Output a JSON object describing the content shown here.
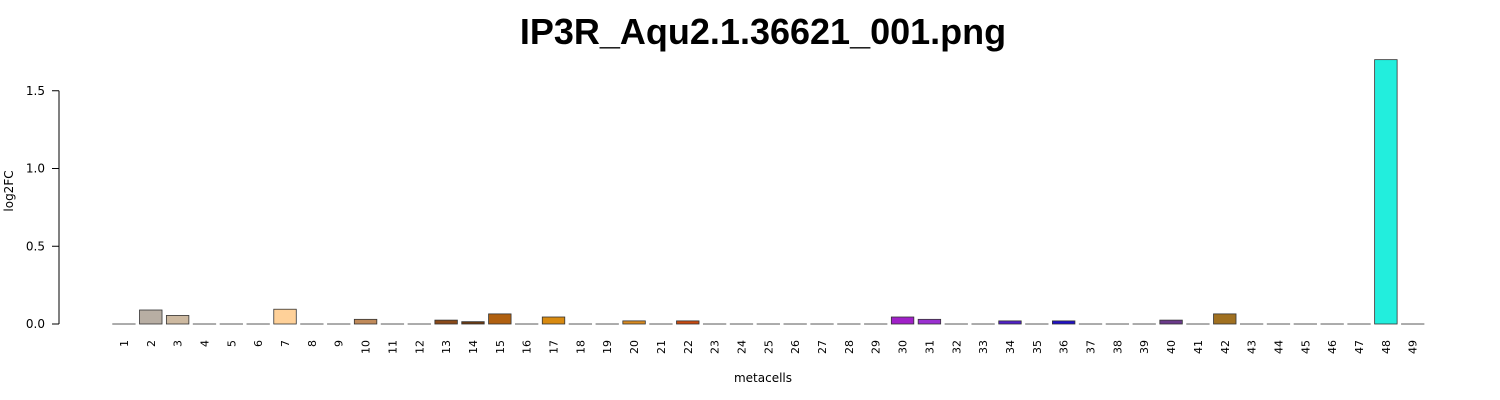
{
  "chart_data": {
    "type": "bar",
    "title": "IP3R_Aqu2.1.36621_001.png",
    "xlabel": "metacells",
    "ylabel": "log2FC",
    "ylim": [
      0,
      1.7
    ],
    "yticks": [
      "0.0",
      "0.5",
      "1.0",
      "1.5"
    ],
    "grid": false,
    "categories": [
      "1",
      "2",
      "3",
      "4",
      "5",
      "6",
      "7",
      "8",
      "9",
      "10",
      "11",
      "12",
      "13",
      "14",
      "15",
      "16",
      "17",
      "18",
      "19",
      "20",
      "21",
      "22",
      "23",
      "24",
      "25",
      "26",
      "27",
      "28",
      "29",
      "30",
      "31",
      "32",
      "33",
      "34",
      "35",
      "36",
      "37",
      "38",
      "39",
      "40",
      "41",
      "42",
      "43",
      "44",
      "45",
      "46",
      "47",
      "48",
      "49"
    ],
    "values": [
      0,
      0.09,
      0.055,
      0,
      0,
      0,
      0.095,
      0,
      0,
      0.03,
      0,
      0,
      0.025,
      0.015,
      0.065,
      0,
      0.045,
      0,
      0,
      0.02,
      0,
      0.02,
      0,
      0,
      0,
      0,
      0,
      0,
      0,
      0.045,
      0.03,
      0,
      0,
      0.02,
      0,
      0.02,
      0,
      0,
      0,
      0.025,
      0,
      0.065,
      0,
      0,
      0,
      0,
      0,
      1.7,
      0
    ],
    "colors": [
      "#cccccc",
      "#b8aea3",
      "#cdb9a0",
      "#cccccc",
      "#cccccc",
      "#cccccc",
      "#ffd199",
      "#cccccc",
      "#cccccc",
      "#c08a5a",
      "#cccccc",
      "#cccccc",
      "#8a4a1a",
      "#6b3a10",
      "#b06010",
      "#cccccc",
      "#d88a10",
      "#cccccc",
      "#cccccc",
      "#d88a20",
      "#cccccc",
      "#c84a10",
      "#cccccc",
      "#cccccc",
      "#cccccc",
      "#cccccc",
      "#cccccc",
      "#cccccc",
      "#cccccc",
      "#a020c8",
      "#9a30d0",
      "#cccccc",
      "#cccccc",
      "#5020c8",
      "#cccccc",
      "#2010c8",
      "#cccccc",
      "#cccccc",
      "#cccccc",
      "#6a3a8a",
      "#cccccc",
      "#a07020",
      "#cccccc",
      "#cccccc",
      "#cccccc",
      "#cccccc",
      "#cccccc",
      "#22eedd",
      "#cccccc"
    ]
  }
}
